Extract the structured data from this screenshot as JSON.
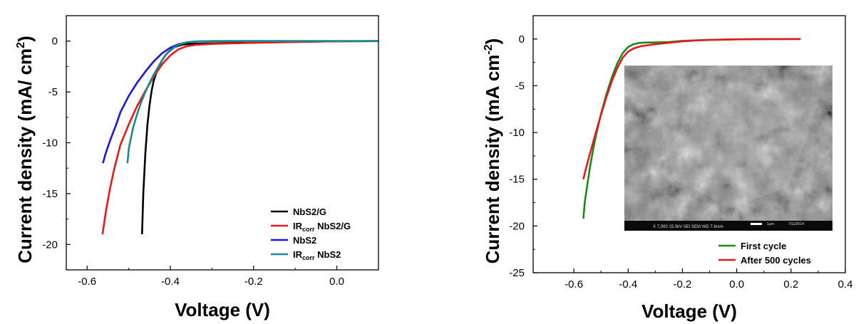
{
  "chart_data": [
    {
      "type": "line",
      "xlabel": "Voltage (V)",
      "ylabel": "Current density (mA/ cm",
      "ylabel_sup": "2",
      "ylabel_close": ")",
      "xlim": [
        -0.65,
        0.1
      ],
      "ylim": [
        -22.5,
        2.5
      ],
      "xticks": [
        -0.6,
        -0.4,
        -0.2,
        0.0
      ],
      "xtick_labels": [
        "-0.6",
        "-0.4",
        "-0.2",
        "0.0"
      ],
      "yticks": [
        0,
        -5,
        -10,
        -15,
        -20
      ],
      "ytick_labels": [
        "0",
        "-5",
        "-10",
        "-15",
        "-20"
      ],
      "legend_position": "bottom-right",
      "series": [
        {
          "name": "NbS2/G",
          "legend_main": "NbS2/G",
          "color": "#000000",
          "x": [
            -0.468,
            -0.465,
            -0.46,
            -0.455,
            -0.45,
            -0.445,
            -0.44,
            -0.43,
            -0.42,
            -0.41,
            -0.4,
            -0.39,
            -0.38,
            -0.37,
            -0.36,
            -0.35,
            -0.33,
            -0.3,
            -0.25,
            -0.2,
            -0.1,
            0.0,
            0.1
          ],
          "y": [
            -19,
            -15,
            -11,
            -8.2,
            -6.3,
            -4.9,
            -3.9,
            -2.7,
            -1.9,
            -1.3,
            -0.9,
            -0.6,
            -0.45,
            -0.35,
            -0.3,
            -0.27,
            -0.25,
            -0.22,
            -0.18,
            -0.15,
            -0.08,
            -0.02,
            0
          ]
        },
        {
          "name": "IRcorr NbS2/G",
          "legend_prefix": "IR",
          "legend_sub": "corr",
          "legend_main": " NbS2/G",
          "color": "#e8191c",
          "x": [
            -0.563,
            -0.555,
            -0.545,
            -0.535,
            -0.52,
            -0.5,
            -0.48,
            -0.46,
            -0.44,
            -0.42,
            -0.4,
            -0.38,
            -0.36,
            -0.34,
            -0.32,
            -0.3,
            -0.25,
            -0.2,
            -0.1,
            0.0,
            0.1
          ],
          "y": [
            -19,
            -16.8,
            -14.5,
            -12.6,
            -10.2,
            -8.2,
            -6.4,
            -4.9,
            -3.5,
            -2.3,
            -1.4,
            -0.8,
            -0.5,
            -0.38,
            -0.32,
            -0.28,
            -0.22,
            -0.17,
            -0.09,
            -0.02,
            0
          ]
        },
        {
          "name": "NbS2",
          "legend_main": "NbS2",
          "color": "#1a14e6",
          "x": [
            -0.562,
            -0.555,
            -0.545,
            -0.53,
            -0.52,
            -0.5,
            -0.48,
            -0.46,
            -0.44,
            -0.42,
            -0.4,
            -0.38,
            -0.36,
            -0.34,
            -0.3,
            -0.2,
            -0.1,
            0.0,
            0.1
          ],
          "y": [
            -12,
            -11,
            -9.8,
            -8.2,
            -7,
            -5.4,
            -4.1,
            -3,
            -2,
            -1.2,
            -0.65,
            -0.3,
            -0.12,
            -0.05,
            0,
            0,
            0,
            0,
            0
          ]
        },
        {
          "name": "IRcorr NbS2",
          "legend_prefix": "IR",
          "legend_sub": "corr",
          "legend_main": " NbS2",
          "color": "#1a8a8a",
          "x": [
            -0.503,
            -0.5,
            -0.49,
            -0.48,
            -0.47,
            -0.46,
            -0.45,
            -0.44,
            -0.43,
            -0.42,
            -0.41,
            -0.4,
            -0.38,
            -0.36,
            -0.34,
            -0.3,
            -0.2,
            -0.1,
            0.0,
            0.1
          ],
          "y": [
            -12,
            -10.6,
            -8.6,
            -7.2,
            -6,
            -5,
            -4.1,
            -3.3,
            -2.6,
            -1.9,
            -1.3,
            -0.85,
            -0.35,
            -0.12,
            -0.03,
            0,
            0,
            0,
            0,
            0
          ]
        }
      ]
    },
    {
      "type": "line",
      "xlabel": "Voltage (V)",
      "ylabel": "Current density (mA cm",
      "ylabel_sup": "-2",
      "ylabel_close": ")",
      "xlim": [
        -0.75,
        0.4
      ],
      "ylim": [
        -25,
        2.5
      ],
      "xticks": [
        -0.6,
        -0.4,
        -0.2,
        0.0,
        0.2,
        0.4
      ],
      "xtick_labels": [
        "-0.6",
        "-0.4",
        "-0.2",
        "0.0",
        "0.2",
        "0.4"
      ],
      "yticks": [
        0,
        -5,
        -10,
        -15,
        -20,
        -25
      ],
      "ytick_labels": [
        "0",
        "-5",
        "-10",
        "-15",
        "-20",
        "-25"
      ],
      "legend_position": "bottom-right",
      "inset": "SEM micrograph",
      "inset_scale_text": "1μm",
      "inset_info_text": "X 7,000   15.0kV SEI   SEM   WD 7.6mm",
      "inset_date_text": "7/11/2014",
      "series": [
        {
          "name": "First cycle",
          "legend_main": "First cycle",
          "color": "#168c16",
          "x": [
            -0.565,
            -0.56,
            -0.55,
            -0.54,
            -0.53,
            -0.52,
            -0.5,
            -0.48,
            -0.46,
            -0.44,
            -0.42,
            -0.4,
            -0.38,
            -0.36,
            -0.34,
            -0.32,
            -0.3,
            -0.25,
            -0.2,
            -0.1,
            0.0,
            0.1,
            0.2,
            0.235
          ],
          "y": [
            -19.2,
            -17.5,
            -15.5,
            -13.6,
            -12,
            -10.5,
            -8,
            -5.9,
            -4.1,
            -2.6,
            -1.5,
            -0.85,
            -0.55,
            -0.42,
            -0.38,
            -0.37,
            -0.36,
            -0.32,
            -0.2,
            -0.08,
            -0.03,
            -0.01,
            0,
            0
          ]
        },
        {
          "name": "After 500 cycles",
          "legend_main": "After 500 cycles",
          "color": "#e8191c",
          "x": [
            -0.565,
            -0.555,
            -0.54,
            -0.52,
            -0.5,
            -0.48,
            -0.46,
            -0.44,
            -0.42,
            -0.4,
            -0.38,
            -0.35,
            -0.3,
            -0.25,
            -0.2,
            -0.15,
            -0.1,
            0.0,
            0.1,
            0.2,
            0.235
          ],
          "y": [
            -15,
            -13.8,
            -12.2,
            -10.1,
            -8.1,
            -6.2,
            -4.5,
            -3.1,
            -2,
            -1.35,
            -1,
            -0.75,
            -0.55,
            -0.4,
            -0.25,
            -0.15,
            -0.1,
            -0.04,
            -0.01,
            0,
            0
          ]
        }
      ]
    }
  ]
}
